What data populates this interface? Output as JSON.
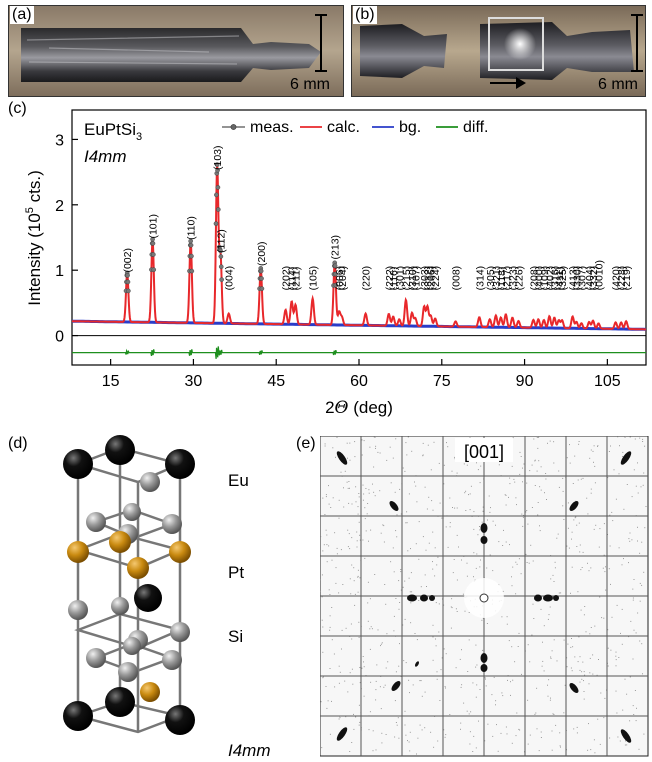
{
  "panels": {
    "a": {
      "label": "(a)",
      "scale": "6 mm"
    },
    "b": {
      "label": "(b)",
      "scale": "6 mm"
    },
    "c": {
      "label": "(c)"
    },
    "d": {
      "label": "(d)",
      "atoms": [
        "Eu",
        "Pt",
        "Si"
      ],
      "space_group": "I4mm"
    },
    "e": {
      "label": "(e)",
      "zone": "[001]"
    }
  },
  "chart_data": {
    "type": "line",
    "compound": "EuPtSi",
    "compound_sub": "3",
    "space_group": "I4mm",
    "xlabel_prefix": "2",
    "xlabel_symbol": "Θ",
    "xlabel_suffix": " (deg)",
    "ylabel": "Intensity (10",
    "ylabel_exp": "5",
    "ylabel_suffix": " cts.)",
    "xlim": [
      8,
      112
    ],
    "ylim": [
      -0.45,
      3.45
    ],
    "xticks": [
      15,
      30,
      45,
      60,
      75,
      90,
      105
    ],
    "yticks": [
      0,
      1,
      2,
      3
    ],
    "legend": [
      {
        "name": "meas.",
        "color": "#555555"
      },
      {
        "name": "calc.",
        "color": "#e8282b"
      },
      {
        "name": "bg.",
        "color": "#2a3cc8"
      },
      {
        "name": "diff.",
        "color": "#1e8f1e"
      }
    ],
    "peaks": [
      {
        "x": 18.0,
        "y": 0.75,
        "hkl": "(002)"
      },
      {
        "x": 22.6,
        "y": 1.27,
        "hkl": "(101)"
      },
      {
        "x": 29.5,
        "y": 1.25,
        "hkl": "(110)"
      },
      {
        "x": 34.3,
        "y": 2.4,
        "hkl": "(103)"
      },
      {
        "x": 34.9,
        "y": 1.05,
        "hkl": "(112)"
      },
      {
        "x": 36.4,
        "y": 0.15,
        "hkl": "(004)"
      },
      {
        "x": 42.2,
        "y": 0.85,
        "hkl": "(200)"
      },
      {
        "x": 46.7,
        "y": 0.22,
        "hkl": "(202)"
      },
      {
        "x": 47.8,
        "y": 0.35,
        "hkl": "(114)"
      },
      {
        "x": 48.5,
        "y": 0.3,
        "hkl": "(211)"
      },
      {
        "x": 51.6,
        "y": 0.4,
        "hkl": "(105)"
      },
      {
        "x": 55.6,
        "y": 0.95,
        "hkl": "(213)"
      },
      {
        "x": 56.4,
        "y": 0.2,
        "hkl": "(006)"
      },
      {
        "x": 56.9,
        "y": 0.12,
        "hkl": "(204)"
      },
      {
        "x": 61.2,
        "y": 0.18,
        "hkl": "(220)"
      },
      {
        "x": 65.4,
        "y": 0.18,
        "hkl": "(222)"
      },
      {
        "x": 66.2,
        "y": 0.14,
        "hkl": "(116)"
      },
      {
        "x": 67.3,
        "y": 0.1,
        "hkl": "(301)"
      },
      {
        "x": 68.5,
        "y": 0.4,
        "hkl": "(215)"
      },
      {
        "x": 69.6,
        "y": 0.2,
        "hkl": "(310)"
      },
      {
        "x": 70.2,
        "y": 0.12,
        "hkl": "(107)"
      },
      {
        "x": 71.8,
        "y": 0.3,
        "hkl": "(303)"
      },
      {
        "x": 72.4,
        "y": 0.3,
        "hkl": "(312)"
      },
      {
        "x": 73.0,
        "y": 0.16,
        "hkl": "(206)"
      },
      {
        "x": 73.8,
        "y": 0.12,
        "hkl": "(224)"
      },
      {
        "x": 77.5,
        "y": 0.08,
        "hkl": "(008)"
      },
      {
        "x": 81.8,
        "y": 0.15,
        "hkl": "(314)"
      },
      {
        "x": 83.7,
        "y": 0.12,
        "hkl": "(305)"
      },
      {
        "x": 84.8,
        "y": 0.18,
        "hkl": "(321)"
      },
      {
        "x": 85.7,
        "y": 0.15,
        "hkl": "(118)"
      },
      {
        "x": 86.6,
        "y": 0.2,
        "hkl": "(217)"
      },
      {
        "x": 87.8,
        "y": 0.15,
        "hkl": "(323)"
      },
      {
        "x": 88.9,
        "y": 0.1,
        "hkl": "(226)"
      },
      {
        "x": 91.6,
        "y": 0.12,
        "hkl": "(208)"
      },
      {
        "x": 92.5,
        "y": 0.13,
        "hkl": "(400)"
      },
      {
        "x": 93.5,
        "y": 0.12,
        "hkl": "(109)"
      },
      {
        "x": 94.5,
        "y": 0.18,
        "hkl": "(402)"
      },
      {
        "x": 95.4,
        "y": 0.16,
        "hkl": "(316)"
      },
      {
        "x": 96.2,
        "y": 0.12,
        "hkl": "(411)"
      },
      {
        "x": 96.8,
        "y": 0.12,
        "hkl": "(325)"
      },
      {
        "x": 98.7,
        "y": 0.18,
        "hkl": "(413)"
      },
      {
        "x": 99.4,
        "y": 0.1,
        "hkl": "(330)"
      },
      {
        "x": 100.3,
        "y": 0.08,
        "hkl": "(307)"
      },
      {
        "x": 101.7,
        "y": 0.1,
        "hkl": "(404)"
      },
      {
        "x": 102.4,
        "y": 0.12,
        "hkl": "(332)"
      },
      {
        "x": 103.4,
        "y": 0.08,
        "hkl": "(0010)"
      },
      {
        "x": 106.5,
        "y": 0.1,
        "hkl": "(420)"
      },
      {
        "x": 107.5,
        "y": 0.1,
        "hkl": "(228)"
      },
      {
        "x": 108.4,
        "y": 0.12,
        "hkl": "(219)"
      }
    ]
  }
}
